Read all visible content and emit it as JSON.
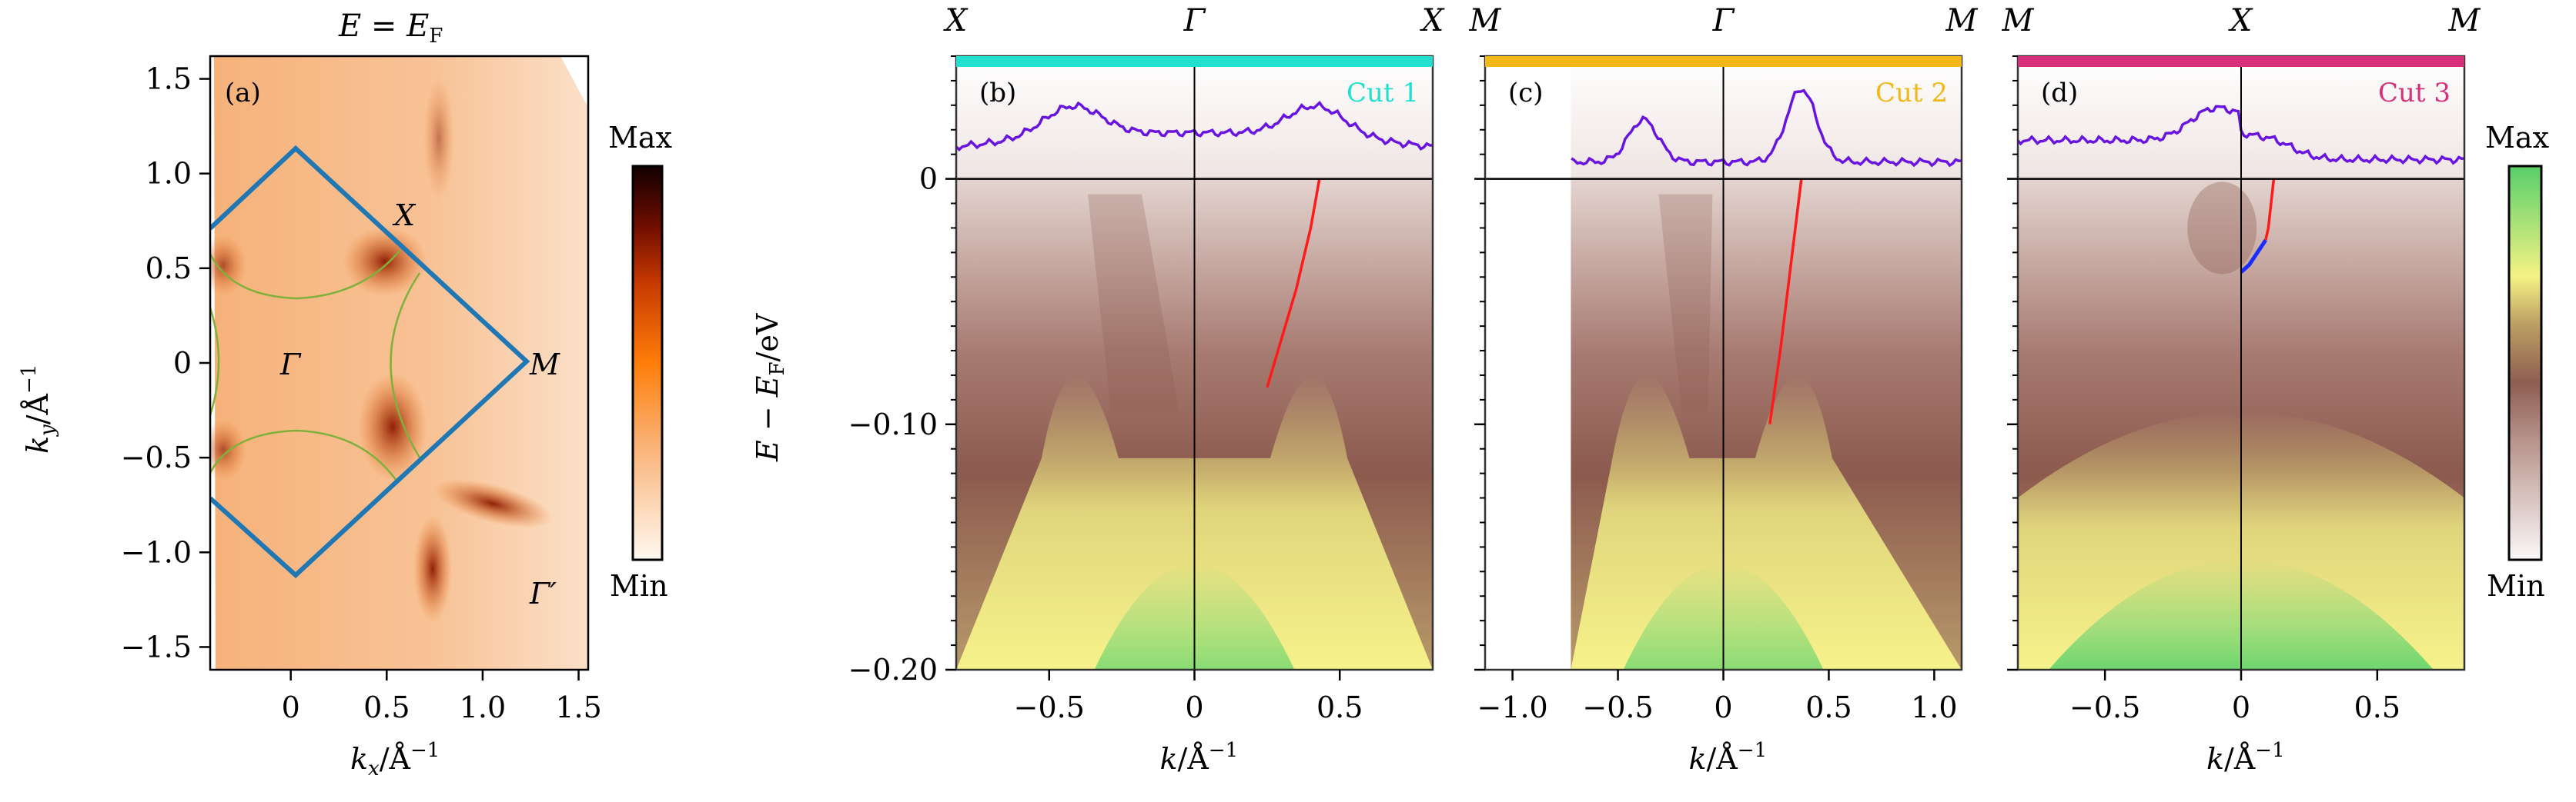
{
  "chart_data": [
    {
      "type": "heatmap",
      "panel": "(a)",
      "title": "E = E_F",
      "xlabel": "k_x/Å^-1",
      "ylabel": "k_y/Å^-1",
      "xlim": [
        -0.42,
        1.55
      ],
      "ylim": [
        -1.62,
        1.62
      ],
      "xticks": [
        0,
        0.5,
        1.0,
        1.5
      ],
      "xtick_labels": [
        "0",
        "0.5",
        "1.0",
        "1.5"
      ],
      "yticks": [
        -1.5,
        -1.0,
        -0.5,
        0,
        0.5,
        1.0,
        1.5
      ],
      "ytick_labels": [
        "−1.5",
        "−1.0",
        "−0.5",
        "0",
        "0.5",
        "1.0",
        "1.5"
      ],
      "colormap": "white-orange-darkred",
      "colorbar": {
        "max_label": "Max",
        "min_label": "Min",
        "colors": [
          "#fff8f0",
          "#f5a35a",
          "#ff7a00",
          "#b22a00",
          "#5a0a00",
          "#100000"
        ]
      },
      "brillouin_zone": {
        "color": "#1f77b4",
        "vertices": [
          [
            0,
            1.12
          ],
          [
            1.15,
            0
          ],
          [
            0,
            -1.17
          ],
          [
            -0.42,
            -0.72
          ]
        ],
        "vertices_top": [
          [
            -0.42,
            0.7
          ],
          [
            0,
            1.12
          ]
        ]
      },
      "point_labels": [
        {
          "text": "Γ",
          "k": [
            0.0,
            0.0
          ]
        },
        {
          "text": "X",
          "k": [
            0.6,
            0.75
          ]
        },
        {
          "text": "M",
          "k": [
            1.3,
            0.0
          ]
        },
        {
          "text": "Γ′",
          "k": [
            1.35,
            -1.2
          ]
        }
      ],
      "fermi_surface_color": "#7fb13a"
    },
    {
      "type": "heatmap",
      "panel": "(b)",
      "cut_label": "Cut 1",
      "cut_color": "#22e0d0",
      "top_labels": [
        "X",
        "Γ",
        "X"
      ],
      "xlabel": "k/Å^-1",
      "ylabel": "E − E_F/eV",
      "xlim": [
        -0.82,
        0.82
      ],
      "ylim": [
        -0.2,
        0.05
      ],
      "xticks": [
        -0.5,
        0,
        0.5
      ],
      "xtick_labels": [
        "−0.5",
        "0",
        "0.5"
      ],
      "yticks": [
        -0.2,
        -0.1,
        0
      ],
      "ytick_labels": [
        "−0.20",
        "−0.10",
        "0"
      ],
      "mdc_peaks_k": [
        -0.42,
        0.42
      ],
      "fit_line_red": {
        "k": [
          0.43,
          0.4,
          0.35,
          0.3,
          0.25
        ],
        "E": [
          0.0,
          -0.02,
          -0.045,
          -0.065,
          -0.085
        ]
      }
    },
    {
      "type": "heatmap",
      "panel": "(c)",
      "cut_label": "Cut 2",
      "cut_color": "#f2b817",
      "top_labels": [
        "M",
        "Γ",
        "M"
      ],
      "xlabel": "k/Å^-1",
      "xlim": [
        -1.13,
        1.13
      ],
      "ylim": [
        -0.2,
        0.05
      ],
      "xticks": [
        -1.0,
        -0.5,
        0,
        0.5,
        1.0
      ],
      "xtick_labels": [
        "−1.0",
        "−0.5",
        "0",
        "0.5",
        "1.0"
      ],
      "mdc_peaks_k": [
        -0.38,
        0.37
      ],
      "fit_line_red": {
        "k": [
          0.37,
          0.32,
          0.27,
          0.22
        ],
        "E": [
          0.0,
          -0.035,
          -0.07,
          -0.1
        ]
      }
    },
    {
      "type": "heatmap",
      "panel": "(d)",
      "cut_label": "Cut 3",
      "cut_color": "#d6307a",
      "top_labels": [
        "M",
        "X",
        "M"
      ],
      "xlabel": "k/Å^-1",
      "xlim": [
        -0.82,
        0.82
      ],
      "ylim": [
        -0.2,
        0.05
      ],
      "xticks": [
        -0.5,
        0,
        0.5
      ],
      "xtick_labels": [
        "−0.5",
        "0",
        "0.5"
      ],
      "mdc_peaks_k": [
        -0.1,
        0.1
      ],
      "fit_line_red": {
        "k": [
          0.12,
          0.11,
          0.1,
          0.09
        ],
        "E": [
          0.0,
          -0.01,
          -0.02,
          -0.025
        ]
      },
      "fit_line_blue": {
        "k": [
          0.09,
          0.06,
          0.03,
          0.0
        ],
        "E": [
          -0.025,
          -0.03,
          -0.035,
          -0.038
        ]
      },
      "colorbar": {
        "max_label": "Max",
        "min_label": "Min",
        "colors": [
          "#f8f4f4",
          "#a07a70",
          "#8a5a4e",
          "#c8b060",
          "#f5f082",
          "#5ad06a"
        ]
      }
    }
  ],
  "labels": {
    "title_a": "E = E",
    "title_a_sub": "F",
    "panel_a": "(a)",
    "panel_b": "(b)",
    "panel_c": "(c)",
    "panel_d": "(d)",
    "cut1": "Cut 1",
    "cut2": "Cut 2",
    "cut3": "Cut 3",
    "max": "Max",
    "min": "Min",
    "gamma": "Γ",
    "gamma_prime": "Γ′",
    "X": "X",
    "M": "M",
    "kx_label": "k",
    "kx_sub": "x",
    "ky_label": "k",
    "ky_sub": "y",
    "inv_ang": "/Å",
    "sup": "−1",
    "k_label": "k",
    "energy_label": "E − E",
    "energy_sub": "F",
    "energy_unit": "/eV"
  }
}
